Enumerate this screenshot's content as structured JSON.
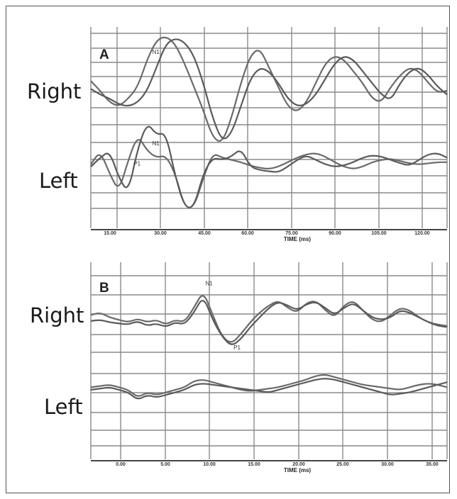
{
  "chart_data": [
    {
      "type": "line",
      "panel": "A",
      "xlabel": "TIME (ms)",
      "ticks": [
        "15.00",
        "30.00",
        "45.00",
        "60.00",
        "75.00",
        "90.00",
        "105.00",
        "120.00"
      ],
      "x": [
        10,
        13,
        16,
        19,
        22,
        25,
        28,
        31,
        34,
        37,
        40,
        43,
        46,
        49,
        52,
        55,
        58,
        61,
        64,
        67,
        70,
        73,
        76,
        79,
        82,
        85,
        88,
        91,
        94,
        97,
        100,
        103,
        106,
        109,
        112,
        115,
        118,
        121,
        124
      ],
      "traces": [
        {
          "label": "Right",
          "peaks": [
            {
              "name": "N1",
              "x": 29
            }
          ],
          "series": [
            {
              "values": [
                0.25,
                0.0,
                -0.3,
                -0.4,
                -0.2,
                0.1,
                0.8,
                1.3,
                1.4,
                1.2,
                0.7,
                0.1,
                -0.5,
                -1.2,
                -1.35,
                -0.7,
                0.2,
                0.9,
                1.1,
                0.6,
                0.1,
                -0.4,
                -0.55,
                -0.3,
                0.2,
                0.7,
                0.9,
                0.8,
                0.5,
                0.2,
                -0.2,
                -0.3,
                0.1,
                0.4,
                0.6,
                0.5,
                0.2,
                -0.05,
                0.0
              ]
            },
            {
              "values": [
                0.05,
                -0.1,
                -0.2,
                -0.35,
                -0.4,
                -0.3,
                0.0,
                0.6,
                1.2,
                1.35,
                1.25,
                0.9,
                0.2,
                -0.7,
                -1.3,
                -1.1,
                -0.4,
                0.3,
                0.6,
                0.5,
                0.2,
                -0.2,
                -0.4,
                -0.35,
                -0.1,
                0.3,
                0.7,
                0.9,
                0.8,
                0.5,
                0.2,
                -0.1,
                -0.25,
                0.2,
                0.5,
                0.6,
                0.4,
                0.1,
                -0.1
              ]
            }
          ]
        },
        {
          "label": "Left",
          "peaks": [
            {
              "name": "N1",
              "x": 29
            },
            {
              "name": "P1",
              "x": 23
            }
          ],
          "series": [
            {
              "values": [
                0.0,
                0.6,
                -0.4,
                -1.2,
                0.2,
                1.3,
                0.6,
                0.3,
                0.4,
                -0.4,
                -1.9,
                -1.9,
                -0.6,
                0.5,
                0.3,
                0.2,
                0.1,
                -0.05,
                -0.15,
                -0.2,
                -0.1,
                0.1,
                0.3,
                0.45,
                0.5,
                0.35,
                0.1,
                -0.1,
                -0.2,
                -0.1,
                0.1,
                0.2,
                0.25,
                0.15,
                0.05,
                0.0,
                0.05,
                0.1,
                0.1
              ]
            },
            {
              "values": [
                -0.1,
                0.3,
                0.6,
                -0.6,
                -1.25,
                0.7,
                1.85,
                1.3,
                1.4,
                -0.5,
                -1.9,
                -1.9,
                -0.4,
                0.3,
                0.2,
                0.35,
                0.7,
                -0.1,
                -0.25,
                -0.3,
                -0.35,
                -0.1,
                0.2,
                0.4,
                0.2,
                0.0,
                -0.1,
                -0.05,
                0.1,
                0.3,
                0.4,
                0.35,
                0.2,
                0.05,
                -0.05,
                0.2,
                0.45,
                0.5,
                0.3
              ]
            }
          ]
        }
      ]
    },
    {
      "type": "line",
      "panel": "B",
      "xlabel": "TIME (ms)",
      "ticks": [
        "0.00",
        "5.00",
        "10.00",
        "15.00",
        "20.00",
        "25.00",
        "30.00",
        "35.00"
      ],
      "x": [
        -2,
        -1,
        0,
        1,
        2,
        3,
        4,
        5,
        6,
        7,
        8,
        9,
        10,
        11,
        12,
        13,
        14,
        15,
        16,
        17,
        18,
        19,
        20,
        21,
        22,
        23,
        24,
        25,
        26,
        27,
        28,
        29,
        30,
        31,
        32,
        33,
        34,
        35,
        36
      ],
      "traces": [
        {
          "label": "Right",
          "peaks": [
            {
              "name": "N1",
              "x": 10
            },
            {
              "name": "P1",
              "x": 13
            }
          ],
          "series": [
            {
              "values": [
                0.4,
                0.5,
                0.3,
                0.2,
                0.1,
                0.25,
                0.1,
                0.2,
                0.0,
                0.2,
                0.1,
                0.7,
                1.4,
                0.4,
                -0.5,
                -0.8,
                -0.4,
                0.1,
                0.5,
                0.8,
                1.0,
                0.7,
                0.5,
                0.9,
                1.0,
                0.6,
                0.3,
                0.8,
                1.0,
                0.6,
                0.2,
                0.1,
                0.4,
                0.7,
                0.6,
                0.3,
                0.1,
                0.0,
                -0.05
              ]
            },
            {
              "values": [
                0.15,
                0.2,
                0.1,
                0.05,
                0.0,
                0.15,
                -0.05,
                0.05,
                -0.1,
                0.1,
                0.0,
                0.5,
                1.2,
                0.2,
                -0.5,
                -0.9,
                -0.6,
                -0.1,
                0.3,
                0.7,
                0.95,
                0.8,
                0.6,
                0.85,
                0.95,
                0.7,
                0.4,
                0.7,
                0.9,
                0.6,
                0.3,
                0.2,
                0.3,
                0.6,
                0.5,
                0.3,
                0.1,
                -0.05,
                -0.1
              ]
            }
          ]
        },
        {
          "label": "Left",
          "series": [
            {
              "values": [
                0.1,
                0.15,
                0.2,
                0.1,
                0.0,
                -0.3,
                -0.1,
                -0.2,
                -0.1,
                0.0,
                0.1,
                0.35,
                0.4,
                0.3,
                0.2,
                0.1,
                0.0,
                -0.05,
                0.0,
                0.05,
                0.1,
                0.2,
                0.3,
                0.4,
                0.55,
                0.6,
                0.5,
                0.4,
                0.3,
                0.2,
                0.15,
                0.1,
                0.05,
                0.0,
                0.1,
                0.2,
                0.25,
                0.2,
                0.1
              ]
            },
            {
              "values": [
                0.0,
                0.05,
                0.1,
                0.0,
                -0.1,
                -0.4,
                -0.2,
                -0.3,
                -0.2,
                -0.1,
                0.0,
                0.2,
                0.25,
                0.2,
                0.15,
                0.1,
                0.05,
                0.0,
                -0.05,
                -0.1,
                0.0,
                0.1,
                0.2,
                0.3,
                0.4,
                0.45,
                0.4,
                0.3,
                0.2,
                0.1,
                0.0,
                -0.1,
                -0.2,
                -0.15,
                -0.1,
                0.0,
                0.1,
                0.2,
                0.3
              ]
            }
          ]
        }
      ]
    }
  ]
}
